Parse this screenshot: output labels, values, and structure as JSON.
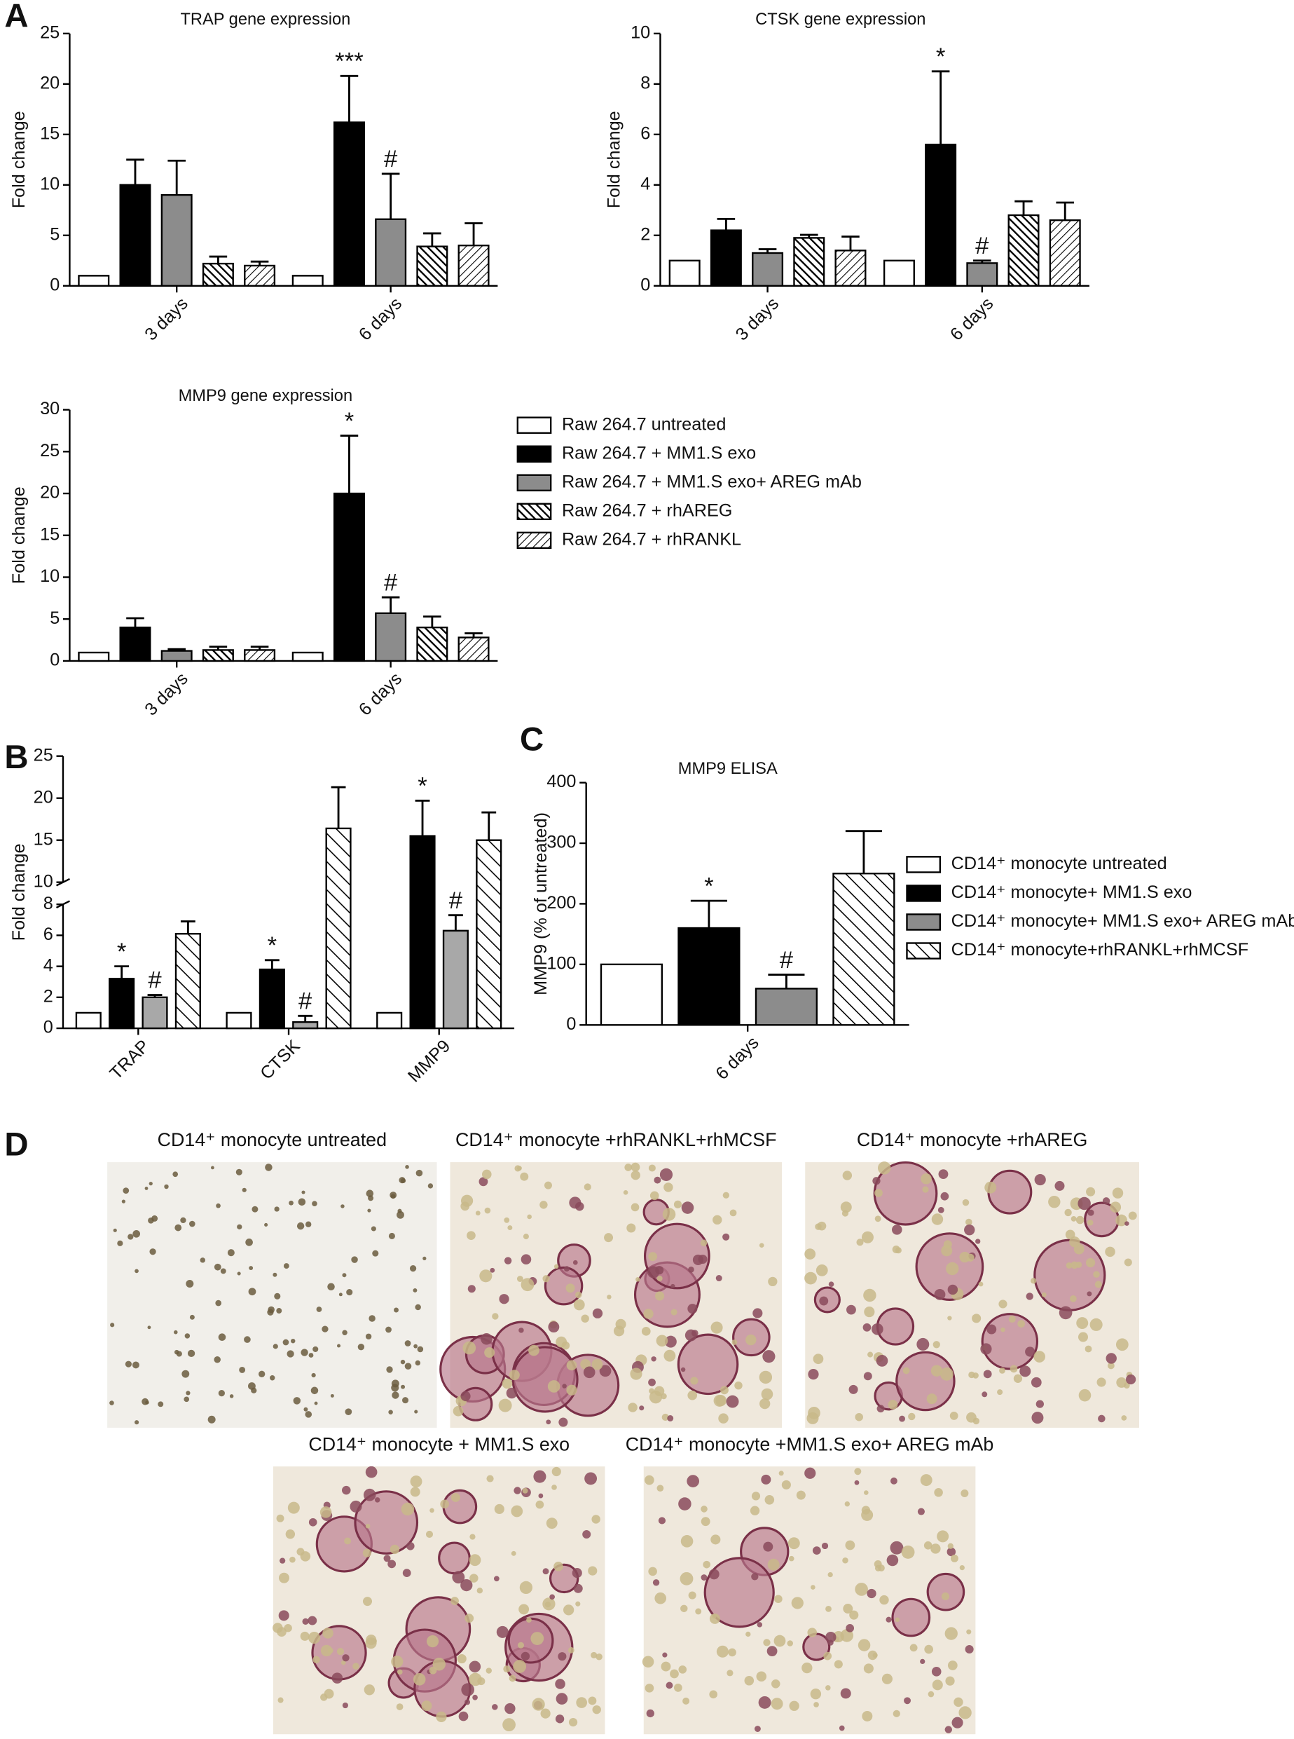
{
  "panels": [
    "A",
    "B",
    "C",
    "D"
  ],
  "chart_data": [
    {
      "type": "bar",
      "title": "TRAP gene expression",
      "y_label": "Fold change",
      "categories": [
        "3 days",
        "6 days"
      ],
      "ylim": [
        0,
        25
      ],
      "yticks": [
        0,
        5,
        10,
        15,
        20,
        25
      ],
      "series": [
        {
          "color": "#ffffff",
          "values": [
            1,
            1
          ],
          "errors": [
            0,
            0
          ]
        },
        {
          "color": "#000000",
          "values": [
            10,
            16.2
          ],
          "errors": [
            2.5,
            4.6
          ],
          "annotations": [
            null,
            "***"
          ]
        },
        {
          "color": "#8c8c8c",
          "values": [
            9,
            6.6
          ],
          "errors": [
            3.4,
            4.5
          ],
          "annotations": [
            null,
            "#"
          ]
        },
        {
          "color": "#000000",
          "pattern": "back-dense",
          "values": [
            2.2,
            3.9
          ],
          "errors": [
            0.7,
            1.3
          ]
        },
        {
          "color": "#000000",
          "pattern": "fwd",
          "values": [
            2,
            4
          ],
          "errors": [
            0.4,
            2.2
          ]
        }
      ]
    },
    {
      "type": "bar",
      "title": "CTSK gene expression",
      "y_label": "Fold change",
      "categories": [
        "3 days",
        "6 days"
      ],
      "ylim": [
        0,
        10
      ],
      "yticks": [
        0,
        2,
        4,
        6,
        8,
        10
      ],
      "series": [
        {
          "color": "#ffffff",
          "values": [
            1,
            1
          ],
          "errors": [
            0,
            0
          ]
        },
        {
          "color": "#000000",
          "values": [
            2.2,
            5.6
          ],
          "errors": [
            0.45,
            2.9
          ],
          "annotations": [
            null,
            "*"
          ]
        },
        {
          "color": "#8c8c8c",
          "values": [
            1.3,
            0.9
          ],
          "errors": [
            0.15,
            0.1
          ],
          "annotations": [
            null,
            "#"
          ]
        },
        {
          "color": "#000000",
          "pattern": "back-dense",
          "values": [
            1.9,
            2.8
          ],
          "errors": [
            0.12,
            0.55
          ]
        },
        {
          "color": "#000000",
          "pattern": "fwd",
          "values": [
            1.4,
            2.6
          ],
          "errors": [
            0.55,
            0.7
          ]
        }
      ]
    },
    {
      "type": "bar",
      "title": "MMP9 gene expression",
      "y_label": "Fold change",
      "categories": [
        "3 days",
        "6 days"
      ],
      "ylim": [
        0,
        30
      ],
      "yticks": [
        0,
        5,
        10,
        15,
        20,
        25,
        30
      ],
      "series": [
        {
          "name": "Raw 264.7 untreated",
          "color": "#ffffff",
          "values": [
            1,
            1
          ],
          "errors": [
            0,
            0
          ]
        },
        {
          "name": "Raw 264.7 + MM1.S exo",
          "color": "#000000",
          "values": [
            4,
            20
          ],
          "errors": [
            1.1,
            6.9
          ],
          "annotations": [
            null,
            "*"
          ]
        },
        {
          "name": "Raw 264.7 + MM1.S exo+ AREG mAb",
          "color": "#8c8c8c",
          "values": [
            1.2,
            5.7
          ],
          "errors": [
            0.2,
            1.9
          ],
          "annotations": [
            null,
            "#"
          ]
        },
        {
          "name": "Raw 264.7 + rhAREG",
          "color": "#000000",
          "pattern": "back-dense",
          "values": [
            1.3,
            4
          ],
          "errors": [
            0.4,
            1.3
          ]
        },
        {
          "name": "Raw 264.7 + rhRANKL",
          "color": "#000000",
          "pattern": "fwd",
          "values": [
            1.3,
            2.8
          ],
          "errors": [
            0.4,
            0.5
          ]
        }
      ]
    },
    {
      "type": "bar",
      "y_label": "Fold change",
      "categories": [
        "TRAP",
        "CTSK",
        "MMP9"
      ],
      "ylim": [
        0,
        25
      ],
      "y_break": [
        8,
        10
      ],
      "yticks": [
        0,
        2,
        4,
        6,
        8,
        10,
        15,
        20,
        25
      ],
      "series": [
        {
          "color": "#ffffff",
          "values": [
            1,
            1,
            1
          ],
          "errors": [
            0,
            0,
            0
          ]
        },
        {
          "color": "#000000",
          "values": [
            3.2,
            3.8,
            15.5
          ],
          "errors": [
            0.8,
            0.6,
            4.2
          ],
          "annotations": [
            "*",
            "*",
            "*"
          ]
        },
        {
          "color": "#a8a8a8",
          "values": [
            2.0,
            0.4,
            6.3
          ],
          "errors": [
            0.15,
            0.4,
            1.0
          ],
          "annotations": [
            "#",
            "#",
            "#"
          ]
        },
        {
          "color": "#000000",
          "pattern": "back-wide",
          "values": [
            6.1,
            16.4,
            15
          ],
          "errors": [
            0.8,
            4.9,
            3.3
          ]
        }
      ]
    },
    {
      "type": "bar",
      "title": "MMP9 ELISA",
      "y_label": "MMP9 (% of untreated)",
      "categories": [
        "6 days"
      ],
      "ylim": [
        0,
        400
      ],
      "yticks": [
        0,
        100,
        200,
        300,
        400
      ],
      "series": [
        {
          "name": "CD14⁺ monocyte untreated",
          "color": "#ffffff",
          "values": [
            100
          ],
          "errors": [
            0
          ]
        },
        {
          "name": "CD14⁺ monocyte+ MM1.S exo",
          "color": "#000000",
          "values": [
            160
          ],
          "errors": [
            45
          ],
          "annotations": [
            "*"
          ]
        },
        {
          "name": "CD14⁺ monocyte+ MM1.S exo+ AREG mAb",
          "color": "#8c8c8c",
          "values": [
            60
          ],
          "errors": [
            23
          ],
          "annotations": [
            "#"
          ]
        },
        {
          "name": "CD14⁺ monocyte+rhRANKL+rhMCSF",
          "color": "#000000",
          "pattern": "back-wide",
          "values": [
            250
          ],
          "errors": [
            70
          ]
        }
      ]
    }
  ],
  "micrographs": [
    {
      "caption": "CD14⁺ monocyte untreated"
    },
    {
      "caption": "CD14⁺ monocyte +rhRANKL+rhMCSF"
    },
    {
      "caption": "CD14⁺ monocyte +rhAREG"
    },
    {
      "caption": "CD14⁺ monocyte + MM1.S exo"
    },
    {
      "caption": "CD14⁺ monocyte +MM1.S exo+ AREG mAb"
    }
  ]
}
